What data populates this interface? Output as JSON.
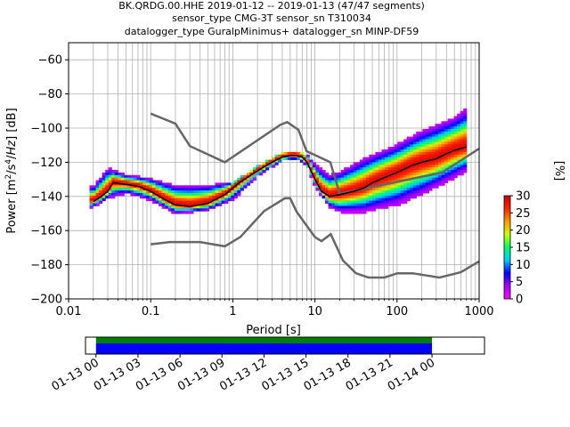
{
  "chart_data": {
    "type": "heatmap",
    "title_lines": [
      "BK.QRDG.00.HHE   2019-01-12 -- 2019-01-13  (47/47 segments)",
      "sensor_type CMG-3T sensor_sn T310034",
      "datalogger_type GuralpMinimus+ datalogger_sn MINP-DF59"
    ],
    "xlabel": "Period [s]",
    "ylabel_html": "Power [m²/s⁴/Hz] [dB]",
    "xscale": "log",
    "xlim": [
      0.01,
      1000
    ],
    "ylim": [
      -200,
      -50
    ],
    "xticks": [
      0.01,
      0.1,
      1,
      10,
      100,
      1000
    ],
    "xticklabels": [
      "0.01",
      "0.1",
      "1",
      "10",
      "100",
      "1000"
    ],
    "yticks": [
      -200,
      -180,
      -160,
      -140,
      -120,
      -100,
      -80,
      -60
    ],
    "yticklabels": [
      "−200",
      "−180",
      "−160",
      "−140",
      "−120",
      "−100",
      "−80",
      "−60"
    ],
    "grid": true,
    "colorbar": {
      "label": "[%]",
      "range": [
        0,
        30
      ],
      "ticks": [
        0,
        5,
        10,
        15,
        20,
        25,
        30
      ],
      "ticklabels": [
        "0",
        "5",
        "10",
        "15",
        "20",
        "25",
        "30"
      ],
      "colors": [
        "#ff00ff",
        "#aa00ff",
        "#0000ff",
        "#00ccff",
        "#00ff66",
        "#ccff00",
        "#ff9900",
        "#ff2200",
        "#cc0000"
      ]
    },
    "noise_model_high": {
      "period": [
        0.1,
        0.2,
        0.3,
        0.8,
        3.8,
        4.6,
        6.3,
        7.9,
        15.4,
        20,
        354.8,
        1000
      ],
      "power": [
        -91.5,
        -97.4,
        -110.5,
        -120,
        -98,
        -96.5,
        -101,
        -113.5,
        -120,
        -138.5,
        -126,
        -112
      ]
    },
    "noise_model_low": {
      "period": [
        0.1,
        0.17,
        0.4,
        0.8,
        1.24,
        2.4,
        4.3,
        5,
        6,
        10,
        12,
        15.6,
        21.9,
        31.6,
        45,
        70,
        101,
        154,
        328,
        600,
        1000
      ],
      "power": [
        -168,
        -166.7,
        -166.7,
        -169.2,
        -163.7,
        -148.6,
        -141.1,
        -141.1,
        -149,
        -163.8,
        -166.2,
        -162.1,
        -177.5,
        -185,
        -187.5,
        -187.5,
        -185,
        -185,
        -187.5,
        -184.4,
        -178
      ]
    },
    "median": {
      "period": [
        0.02,
        0.025,
        0.03,
        0.035,
        0.05,
        0.07,
        0.1,
        0.15,
        0.2,
        0.3,
        0.5,
        0.8,
        1.2,
        2,
        3,
        4,
        5,
        6,
        7,
        8,
        10,
        12,
        15,
        20,
        30,
        40,
        50,
        70,
        100,
        150,
        200,
        300,
        400,
        500,
        700
      ],
      "power": [
        -143,
        -140,
        -137,
        -132,
        -133,
        -134,
        -137,
        -142,
        -145,
        -146,
        -144,
        -139,
        -132,
        -125,
        -120,
        -117,
        -116,
        -116,
        -117,
        -120,
        -130,
        -137,
        -140,
        -139,
        -137,
        -135,
        -132,
        -129,
        -126,
        -122,
        -120,
        -118,
        -115,
        -113,
        -111
      ]
    },
    "band_spread_upper": {
      "period": [
        0.02,
        0.03,
        0.05,
        0.1,
        0.2,
        0.5,
        1,
        2,
        4,
        6,
        8,
        10,
        15,
        20,
        40,
        100,
        200,
        500,
        700
      ],
      "power": [
        -135,
        -124,
        -128,
        -130,
        -134,
        -134,
        -132,
        -123,
        -115,
        -114,
        -116,
        -122,
        -128,
        -126,
        -118,
        -110,
        -102,
        -94,
        -89
      ]
    },
    "band_spread_lower": {
      "period": [
        0.02,
        0.03,
        0.05,
        0.1,
        0.2,
        0.5,
        1,
        2,
        4,
        6,
        8,
        10,
        15,
        20,
        40,
        100,
        200,
        500,
        700
      ],
      "power": [
        -147,
        -142,
        -139,
        -143,
        -151,
        -149,
        -143,
        -129,
        -120,
        -119,
        -123,
        -135,
        -147,
        -150,
        -150,
        -146,
        -140,
        -130,
        -126
      ]
    },
    "timeline": {
      "tick_labels": [
        "01-13 00",
        "01-13 03",
        "01-13 06",
        "01-13 09",
        "01-13 12",
        "01-13 15",
        "01-13 18",
        "01-13 21",
        "01-14 00"
      ],
      "range_hours": [
        -0.75,
        27.75
      ],
      "coverage_hours": [
        0,
        24
      ],
      "coverage_colors": [
        "#008000",
        "#0000ff"
      ]
    }
  }
}
